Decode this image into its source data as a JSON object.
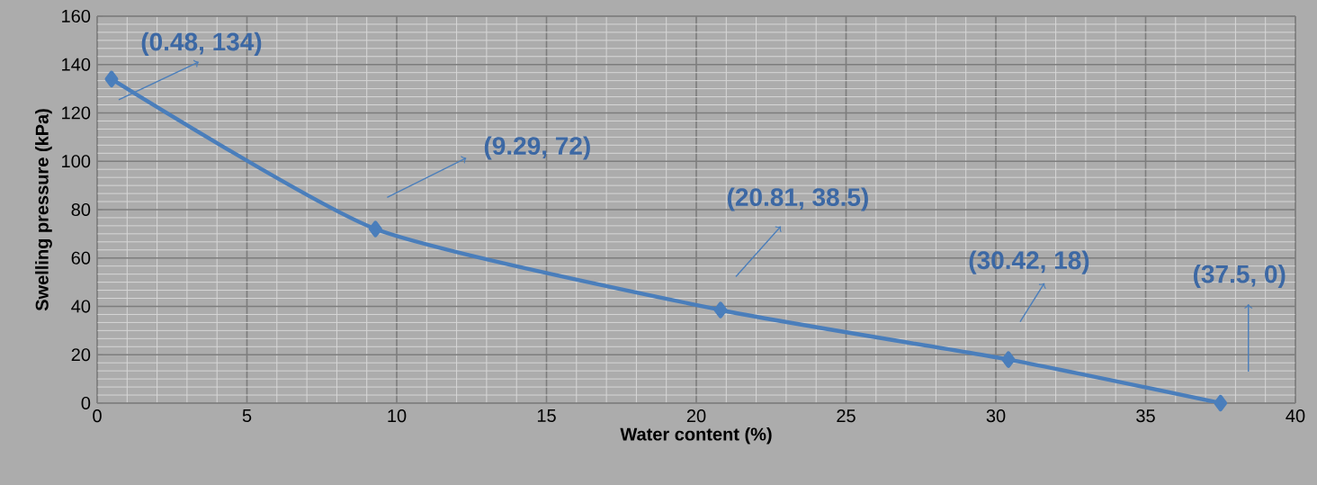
{
  "chart_data": {
    "type": "line",
    "xlabel": "Water content (%)",
    "ylabel": "Swelling pressure (kPa)",
    "x": [
      0.48,
      9.29,
      20.81,
      30.42,
      37.5
    ],
    "series": [
      {
        "color": "#4a7ebb",
        "values": [
          134,
          72,
          38.5,
          18,
          0
        ]
      }
    ],
    "xlim": [
      0,
      40
    ],
    "xticks": [
      0,
      5,
      10,
      15,
      20,
      25,
      30,
      35,
      40
    ],
    "ylim": [
      0,
      160
    ],
    "yticks": [
      0,
      20,
      40,
      60,
      80,
      100,
      120,
      140,
      160
    ],
    "grid": true,
    "marker": "diamond",
    "line_style": "solid",
    "annotations": [
      "(0.48, 134)",
      "(9.29, 72)",
      "(20.81, 38.5)",
      "(30.42, 18)",
      "(37.5, 0)"
    ]
  }
}
